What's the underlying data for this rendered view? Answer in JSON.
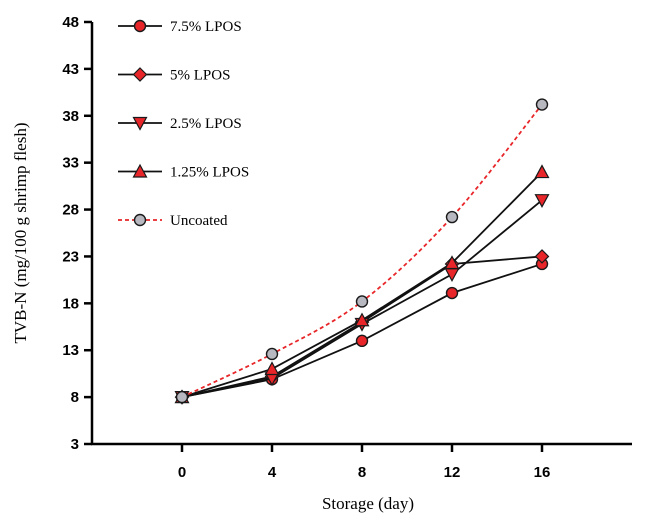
{
  "chart_data": {
    "type": "line",
    "xlabel": "Storage (day)",
    "ylabel": "TVB-N (mg/100 g shrimp flesh)",
    "x": [
      0,
      4,
      8,
      12,
      16
    ],
    "x_ticks": [
      "0",
      "4",
      "8",
      "12",
      "16"
    ],
    "xlim": [
      -4,
      20
    ],
    "ylim": [
      3,
      48
    ],
    "y_ticks": [
      3,
      8,
      13,
      18,
      23,
      28,
      33,
      38,
      43,
      48
    ],
    "grid": false,
    "legend_position": "top-left",
    "series": [
      {
        "name": "7.5% LPOS",
        "values": [
          8.0,
          9.9,
          14.0,
          19.1,
          22.2
        ],
        "marker": "circle",
        "color": "#e8262a",
        "line_color": "#111111",
        "dashed": false
      },
      {
        "name": "5% LPOS",
        "values": [
          8.0,
          10.2,
          16.0,
          22.2,
          23.0
        ],
        "marker": "diamond",
        "color": "#e8262a",
        "line_color": "#111111",
        "dashed": false
      },
      {
        "name": "2.5% LPOS",
        "values": [
          8.0,
          10.0,
          15.8,
          21.1,
          29.0
        ],
        "marker": "triangle-down",
        "color": "#e8262a",
        "line_color": "#111111",
        "dashed": false
      },
      {
        "name": "1.25% LPOS",
        "values": [
          8.0,
          11.0,
          16.2,
          22.3,
          32.0
        ],
        "marker": "triangle-up",
        "color": "#e8262a",
        "line_color": "#111111",
        "dashed": false
      },
      {
        "name": "Uncoated",
        "values": [
          8.0,
          12.6,
          18.2,
          27.2,
          39.2
        ],
        "marker": "circle-gray",
        "color": "#b8b8c0",
        "line_color": "#e8262a",
        "dashed": true
      }
    ]
  }
}
